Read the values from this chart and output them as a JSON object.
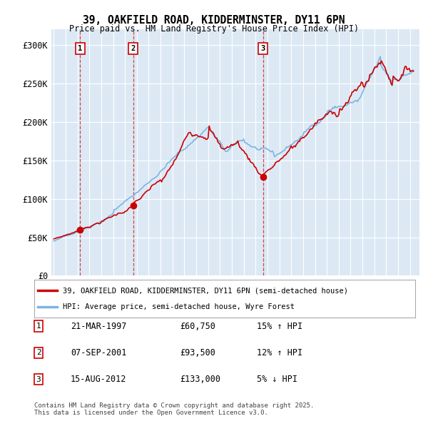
{
  "title": "39, OAKFIELD ROAD, KIDDERMINSTER, DY11 6PN",
  "subtitle": "Price paid vs. HM Land Registry's House Price Index (HPI)",
  "ylim": [
    0,
    320000
  ],
  "yticks": [
    0,
    50000,
    100000,
    150000,
    200000,
    250000,
    300000
  ],
  "ytick_labels": [
    "£0",
    "£50K",
    "£100K",
    "£150K",
    "£200K",
    "£250K",
    "£300K"
  ],
  "bg_color": "#dce9f5",
  "grid_color": "#ffffff",
  "hpi_color": "#7eb4e0",
  "price_color": "#cc0000",
  "transactions": [
    {
      "date": 1997.22,
      "price": 60750,
      "label": "1"
    },
    {
      "date": 2001.68,
      "price": 93500,
      "label": "2"
    },
    {
      "date": 2012.62,
      "price": 133000,
      "label": "3"
    }
  ],
  "legend_entries": [
    {
      "label": "39, OAKFIELD ROAD, KIDDERMINSTER, DY11 6PN (semi-detached house)",
      "color": "#cc0000"
    },
    {
      "label": "HPI: Average price, semi-detached house, Wyre Forest",
      "color": "#7eb4e0"
    }
  ],
  "table_rows": [
    {
      "num": "1",
      "date": "21-MAR-1997",
      "price": "£60,750",
      "hpi": "15% ↑ HPI"
    },
    {
      "num": "2",
      "date": "07-SEP-2001",
      "price": "£93,500",
      "hpi": "12% ↑ HPI"
    },
    {
      "num": "3",
      "date": "15-AUG-2012",
      "price": "£133,000",
      "hpi": "5% ↓ HPI"
    }
  ],
  "footnote": "Contains HM Land Registry data © Crown copyright and database right 2025.\nThis data is licensed under the Open Government Licence v3.0."
}
